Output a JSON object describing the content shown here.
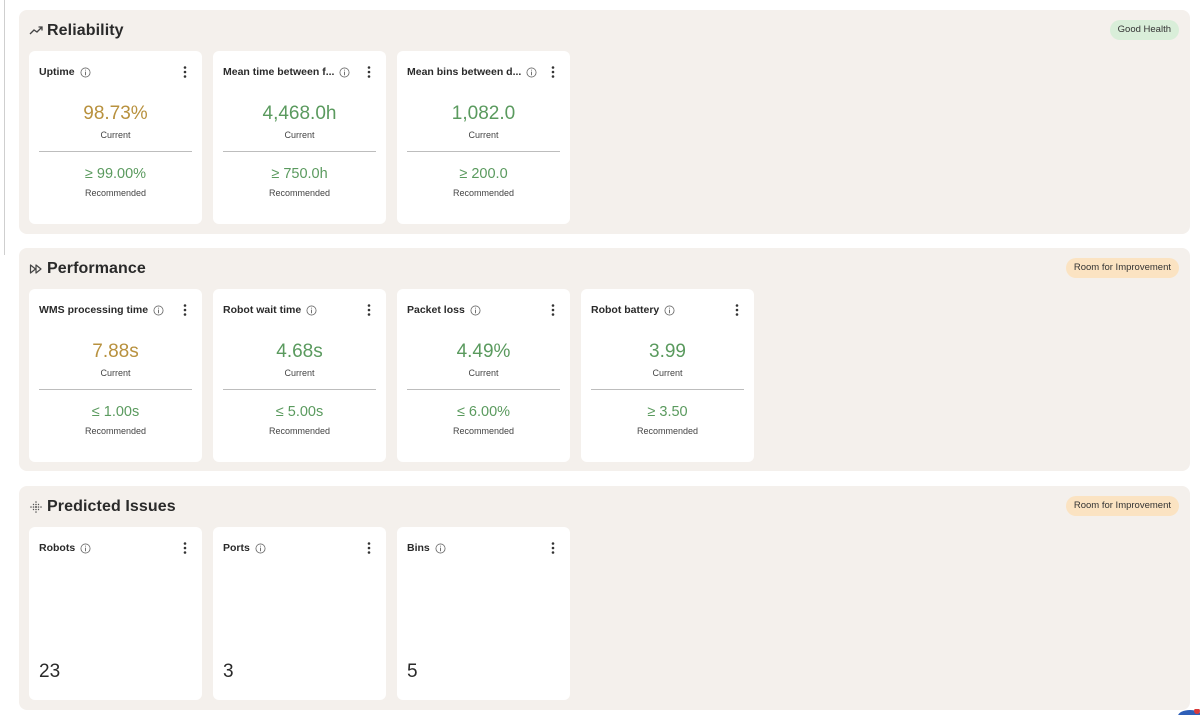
{
  "sections": {
    "reliability": {
      "title": "Reliability",
      "badge": "Good Health",
      "cards": [
        {
          "title": "Uptime",
          "current": "98.73%",
          "current_label": "Current",
          "recommended": "≥ 99.00%",
          "recommended_label": "Recommended"
        },
        {
          "title": "Mean time between f...",
          "current": "4,468.0h",
          "current_label": "Current",
          "recommended": "≥ 750.0h",
          "recommended_label": "Recommended"
        },
        {
          "title": "Mean bins between d...",
          "current": "1,082.0",
          "current_label": "Current",
          "recommended": "≥ 200.0",
          "recommended_label": "Recommended"
        }
      ]
    },
    "performance": {
      "title": "Performance",
      "badge": "Room for Improvement",
      "cards": [
        {
          "title": "WMS processing time",
          "current": "7.88s",
          "current_label": "Current",
          "recommended": "≤ 1.00s",
          "recommended_label": "Recommended"
        },
        {
          "title": "Robot wait time",
          "current": "4.68s",
          "current_label": "Current",
          "recommended": "≤ 5.00s",
          "recommended_label": "Recommended"
        },
        {
          "title": "Packet loss",
          "current": "4.49%",
          "current_label": "Current",
          "recommended": "≤ 6.00%",
          "recommended_label": "Recommended"
        },
        {
          "title": "Robot battery",
          "current": "3.99",
          "current_label": "Current",
          "recommended": "≥ 3.50",
          "recommended_label": "Recommended"
        }
      ]
    },
    "predicted": {
      "title": "Predicted Issues",
      "badge": "Room for Improvement",
      "cards": [
        {
          "title": "Robots",
          "value": "23"
        },
        {
          "title": "Ports",
          "value": "3"
        },
        {
          "title": "Bins",
          "value": "5"
        }
      ]
    }
  },
  "icons": {
    "reliability": "trending-up-icon",
    "performance": "fast-forward-icon",
    "predicted": "dotted-crosshair-icon",
    "info": "info-icon",
    "menu": "kebab-menu-icon"
  },
  "colors": {
    "section_bg": "#f4f0ec",
    "card_bg": "#ffffff",
    "amber_value": "#b8913e",
    "green_value": "#5a9a5e",
    "badge_good": "#d9eed9",
    "badge_warn": "#fbe3c2"
  }
}
